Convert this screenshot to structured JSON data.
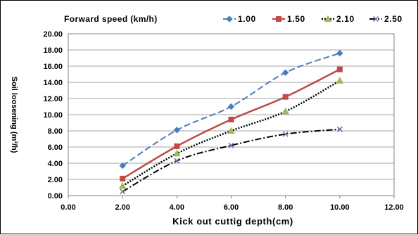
{
  "chart_data": {
    "type": "line",
    "legend_title": "Forward speed (km/h)",
    "legend_placement": "top",
    "xlabel": "Kick out cuttig depth(cm)",
    "ylabel": "Soil loosening (m³/h)",
    "xlim": [
      0,
      12
    ],
    "ylim": [
      0,
      20
    ],
    "x_ticks": [
      "0.00",
      "2.00",
      "4.00",
      "6.00",
      "8.00",
      "10.00",
      "12.00"
    ],
    "y_ticks": [
      "0.00",
      "2.00",
      "4.00",
      "6.00",
      "8.00",
      "10.00",
      "12.00",
      "14.00",
      "16.00",
      "18.00",
      "20.00"
    ],
    "grid": true,
    "x": [
      2,
      4,
      6,
      8,
      10
    ],
    "series": [
      {
        "name": "1.00",
        "values": [
          3.7,
          8.1,
          11.0,
          15.2,
          17.6
        ],
        "color": "#4a7ebb",
        "dash": "dashed",
        "marker": "diamond"
      },
      {
        "name": "1.50",
        "values": [
          2.1,
          6.1,
          9.4,
          12.2,
          15.6
        ],
        "color": "#be4b48",
        "dash": "solid",
        "marker": "square"
      },
      {
        "name": "2.10",
        "values": [
          1.2,
          5.2,
          8.0,
          10.4,
          14.2
        ],
        "color": "#000000",
        "dash": "dotted",
        "marker": "triangle",
        "marker_color": "#9bbb59"
      },
      {
        "name": "2.50",
        "values": [
          0.5,
          4.3,
          6.2,
          7.6,
          8.2
        ],
        "color": "#000000",
        "dash": "dashdot",
        "marker": "x",
        "marker_color": "#7f64a0"
      }
    ]
  }
}
